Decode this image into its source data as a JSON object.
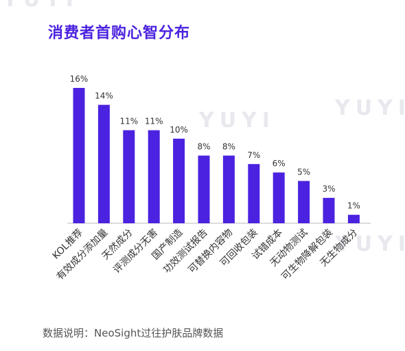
{
  "title": "消费者首购心智分布",
  "watermark": "YUYI",
  "note": "数据说明：NeoSight过往护肤品牌数据",
  "colors": {
    "bar": "#4b22e0",
    "title": "#4b22e0",
    "axis": "#bbbbbb",
    "text": "#333333"
  },
  "chart_data": {
    "type": "bar",
    "title": "消费者首购心智分布",
    "categories": [
      "KOL推荐",
      "有效成分添加量",
      "天然成分",
      "评测成分无害",
      "国产制造",
      "功效测试报告",
      "可替换内容物",
      "可回收包装",
      "试错成本",
      "无动物测试",
      "可生物降解包装",
      "无生物成分"
    ],
    "values": [
      16,
      14,
      11,
      11,
      10,
      8,
      8,
      7,
      6,
      5,
      3,
      1
    ],
    "value_labels": [
      "16%",
      "14%",
      "11%",
      "11%",
      "10%",
      "8%",
      "8%",
      "7%",
      "6%",
      "5%",
      "3%",
      "1%"
    ],
    "ylim": [
      0,
      16
    ],
    "grid": false,
    "legend": "none"
  }
}
